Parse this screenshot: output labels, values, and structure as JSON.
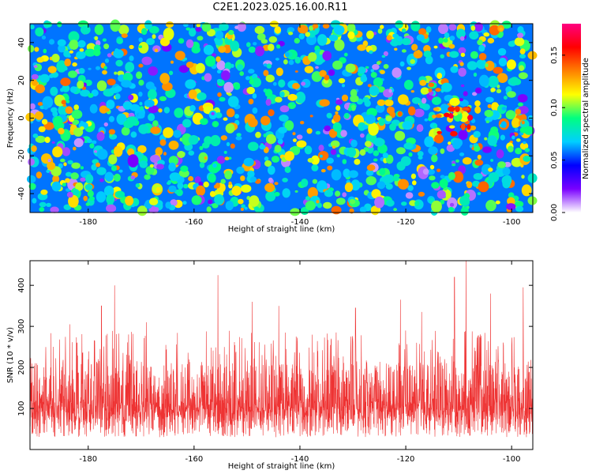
{
  "title": "C2E1.2023.025.16.00.R11",
  "chart_data": [
    {
      "type": "heatmap",
      "xlabel": "Height of straight line (km)",
      "ylabel": "Frequency (Hz)",
      "xlim": [
        -191,
        -96
      ],
      "ylim": [
        -50,
        50
      ],
      "xticks": [
        -180,
        -160,
        -140,
        -120,
        -100
      ],
      "yticks": [
        -40,
        -20,
        0,
        20,
        40
      ],
      "colorbar": {
        "label": "Normalized spectral amplitude",
        "range": [
          0,
          0.18
        ],
        "ticks": [
          "0.00",
          "0.05",
          "0.10",
          "0.15"
        ],
        "colors": [
          "#ffffff",
          "#7a00ff",
          "#0000ff",
          "#00d0ff",
          "#00ff80",
          "#ffff00",
          "#ff8000",
          "#ff0000",
          "#ff0080"
        ]
      },
      "background_level": 0.03,
      "hotspot": {
        "x": -111,
        "y": -2,
        "peak": 0.17
      },
      "grid": false
    },
    {
      "type": "line",
      "xlabel": "Height of straight line (km)",
      "ylabel": "SNR (10 * v/v)",
      "xlim": [
        -191,
        -96
      ],
      "ylim": [
        0,
        460
      ],
      "xticks": [
        -180,
        -160,
        -140,
        -120,
        -100
      ],
      "yticks": [
        100,
        200,
        300,
        400
      ],
      "color": "#ee3333",
      "baseline": 120,
      "typical_range": [
        20,
        260
      ],
      "peaks": [
        {
          "x": -183.5,
          "y": 305
        },
        {
          "x": -177.5,
          "y": 350
        },
        {
          "x": -175.0,
          "y": 400
        },
        {
          "x": -169.0,
          "y": 310
        },
        {
          "x": -155.5,
          "y": 425
        },
        {
          "x": -149.0,
          "y": 360
        },
        {
          "x": -144.0,
          "y": 350
        },
        {
          "x": -129.5,
          "y": 345
        },
        {
          "x": -121.0,
          "y": 365
        },
        {
          "x": -117.0,
          "y": 335
        },
        {
          "x": -110.8,
          "y": 420
        },
        {
          "x": -108.6,
          "y": 460
        },
        {
          "x": -104.0,
          "y": 380
        },
        {
          "x": -97.8,
          "y": 395
        }
      ],
      "grid": false
    }
  ]
}
